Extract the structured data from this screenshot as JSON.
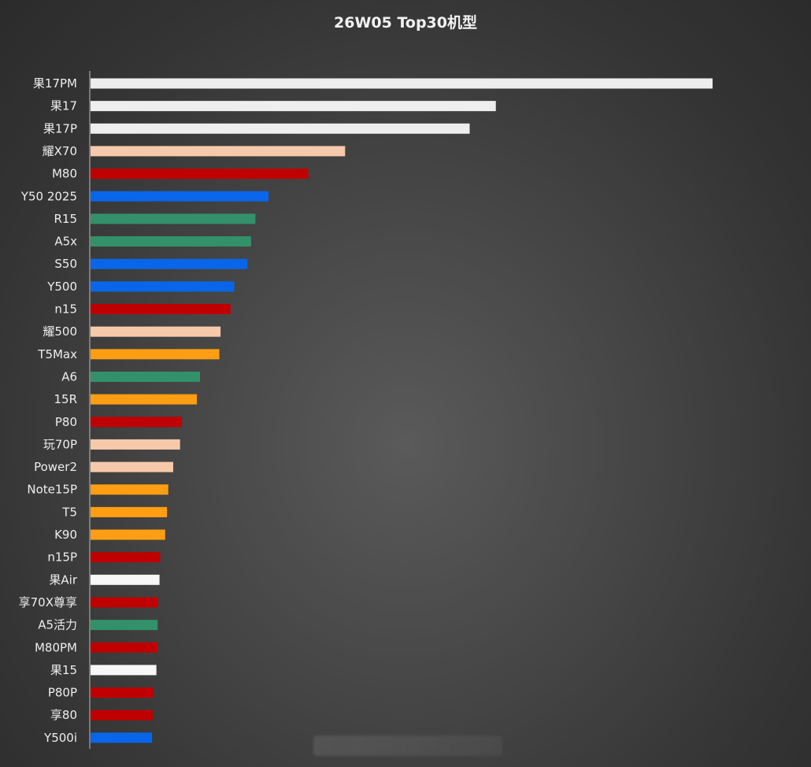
{
  "chart_data": {
    "type": "bar",
    "orientation": "horizontal",
    "title": "26W05 Top30机型",
    "xlabel": "",
    "ylabel": "",
    "grid": false,
    "legend": "none",
    "xlim": [
      0,
      100
    ],
    "value_scale": "relative (no value axis shown)",
    "categories": [
      "果17PM",
      "果17",
      "果17P",
      "耀X70",
      "M80",
      "Y50 2025",
      "R15",
      "A5x",
      "S50",
      "Y500",
      "n15",
      "耀500",
      "T5Max",
      "A6",
      "15R",
      "P80",
      "玩70P",
      "Power2",
      "Note15P",
      "T5",
      "K90",
      "n15P",
      "果Air",
      "享70X尊享",
      "A5活力",
      "M80PM",
      "果15",
      "P80P",
      "享80",
      "Y500i"
    ],
    "values": [
      100,
      65.2,
      61.0,
      41.0,
      35.1,
      28.7,
      26.6,
      25.9,
      25.3,
      23.2,
      22.6,
      21.0,
      20.8,
      17.7,
      17.2,
      14.8,
      14.5,
      13.4,
      12.6,
      12.4,
      12.1,
      11.3,
      11.2,
      11.0,
      10.9,
      10.9,
      10.7,
      10.2,
      10.1,
      10.0
    ],
    "bar_colors": [
      "#eeeeee",
      "#eeeeee",
      "#eeeeee",
      "#f7c9ab",
      "#c00000",
      "#0966ea",
      "#33916a",
      "#33916a",
      "#0966ea",
      "#0966ea",
      "#c00000",
      "#f7c9ab",
      "#ff9e12",
      "#33916a",
      "#ff9e12",
      "#c00000",
      "#f7c9ab",
      "#f7c9ab",
      "#ff9e12",
      "#ff9e12",
      "#ff9e12",
      "#c00000",
      "#f7f7f7",
      "#c00000",
      "#33916a",
      "#c00000",
      "#f7f7f7",
      "#c00000",
      "#c00000",
      "#0966ea"
    ]
  },
  "colors": {
    "label_text": "#eeeeee",
    "axis_line": "#bdbdbd"
  }
}
